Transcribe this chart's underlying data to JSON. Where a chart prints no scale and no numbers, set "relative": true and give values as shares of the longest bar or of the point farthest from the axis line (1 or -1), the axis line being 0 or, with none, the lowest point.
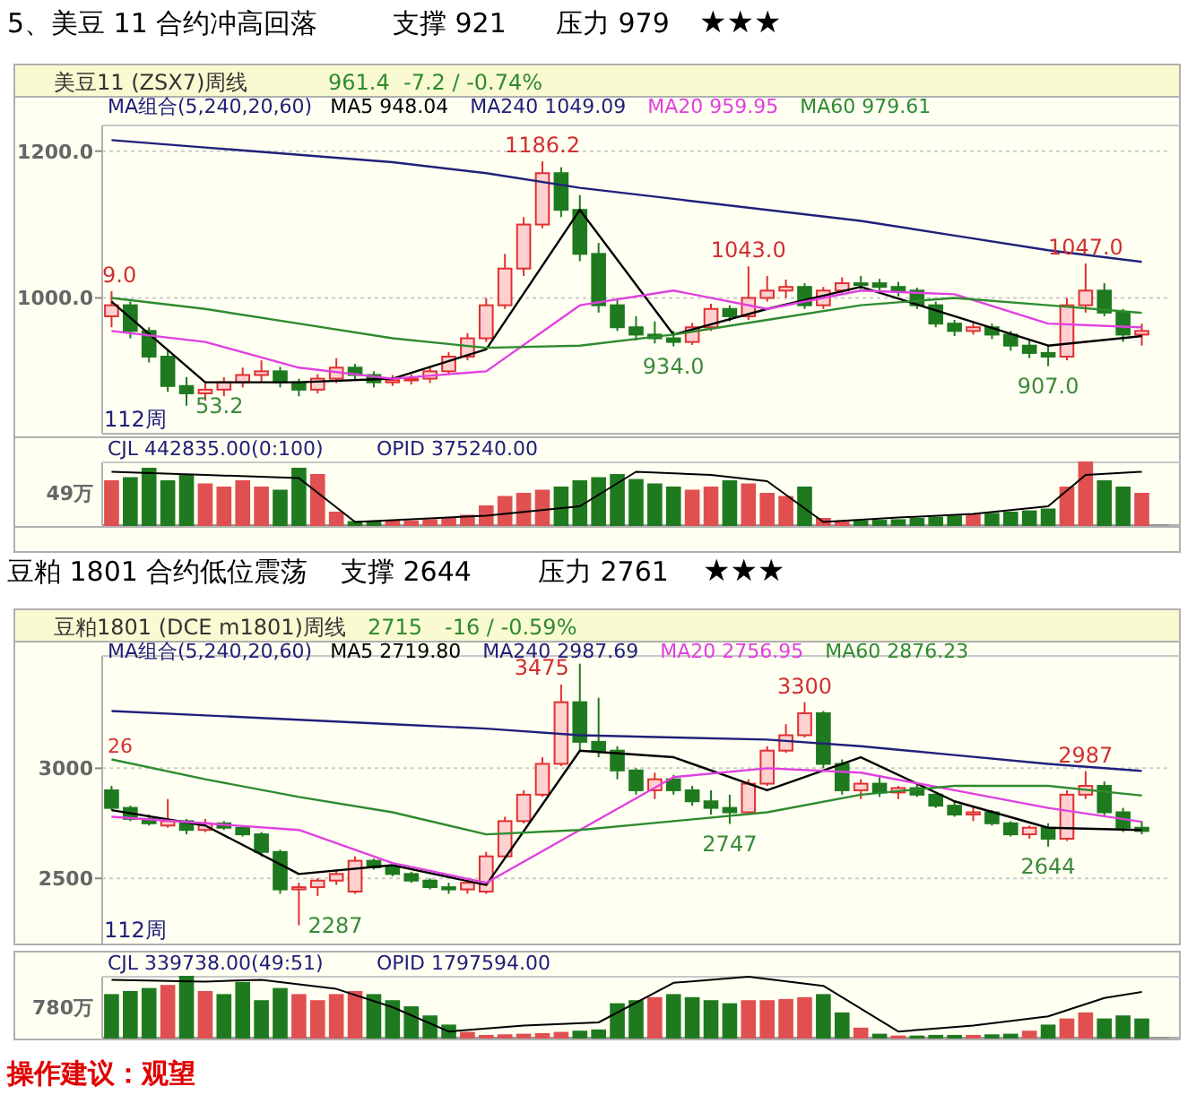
{
  "chart_data": [
    {
      "type": "candlestick",
      "title": "5、美豆 11 合约冲高回落",
      "subtitle": "美豆11 (ZSX7)周线",
      "annotations": [
        "支撑 921",
        "压力 979",
        "★★★",
        "961.4",
        "-7.2 / -0.74%",
        "MA组合(5,240,20,60)",
        "112周",
        "9.0",
        "53.2",
        "1186.2",
        "934.0",
        "1043.0",
        "1047.0",
        "907.0"
      ],
      "categories": [
        null,
        null,
        null,
        null,
        null,
        null,
        null,
        null,
        null,
        null,
        null,
        null,
        null,
        null,
        null,
        null,
        null,
        null,
        null,
        null,
        null,
        null,
        null,
        null,
        null,
        null,
        null,
        null,
        null,
        null,
        null,
        null,
        null,
        null,
        null,
        null,
        null,
        null,
        null,
        null,
        null,
        null,
        null,
        null,
        null,
        null,
        null,
        null,
        null,
        null,
        null,
        null,
        null,
        null,
        null,
        null
      ],
      "ohlc": [
        [
          975,
          1009.0,
          960,
          990
        ],
        [
          990,
          995,
          945,
          955
        ],
        [
          955,
          960,
          912,
          920
        ],
        [
          920,
          928,
          872,
          880
        ],
        [
          880,
          892,
          853.2,
          870
        ],
        [
          870,
          884,
          860,
          875
        ],
        [
          875,
          892,
          866,
          885
        ],
        [
          885,
          905,
          878,
          895
        ],
        [
          895,
          915,
          885,
          900
        ],
        [
          900,
          906,
          878,
          885
        ],
        [
          885,
          890,
          866,
          875
        ],
        [
          875,
          896,
          870,
          890
        ],
        [
          890,
          918,
          884,
          905
        ],
        [
          905,
          910,
          888,
          895
        ],
        [
          895,
          900,
          878,
          885
        ],
        [
          885,
          895,
          880,
          888
        ],
        [
          888,
          896,
          882,
          890
        ],
        [
          890,
          906,
          884,
          900
        ],
        [
          900,
          926,
          895,
          920
        ],
        [
          920,
          952,
          915,
          945
        ],
        [
          945,
          1000,
          940,
          990
        ],
        [
          990,
          1060,
          985,
          1040
        ],
        [
          1040,
          1110,
          1030,
          1100
        ],
        [
          1100,
          1186.2,
          1095,
          1170
        ],
        [
          1170,
          1178,
          1110,
          1120
        ],
        [
          1120,
          1140,
          1050,
          1060
        ],
        [
          1060,
          1075,
          980,
          990
        ],
        [
          990,
          1000,
          955,
          960
        ],
        [
          960,
          975,
          942,
          950
        ],
        [
          950,
          968,
          938,
          945
        ],
        [
          945,
          955,
          934.0,
          940
        ],
        [
          940,
          966,
          936,
          960
        ],
        [
          960,
          992,
          955,
          985
        ],
        [
          985,
          990,
          968,
          975
        ],
        [
          975,
          1043.0,
          970,
          1000
        ],
        [
          1000,
          1030,
          995,
          1010
        ],
        [
          1010,
          1025,
          1000,
          1015
        ],
        [
          1015,
          1020,
          985,
          990
        ],
        [
          990,
          1015,
          985,
          1010
        ],
        [
          1010,
          1028,
          1005,
          1020
        ],
        [
          1020,
          1030,
          1012,
          1020
        ],
        [
          1020,
          1026,
          1008,
          1015
        ],
        [
          1015,
          1022,
          1002,
          1010
        ],
        [
          1010,
          1014,
          985,
          990
        ],
        [
          990,
          995,
          960,
          965
        ],
        [
          965,
          970,
          948,
          955
        ],
        [
          955,
          968,
          950,
          960
        ],
        [
          960,
          965,
          944,
          950
        ],
        [
          950,
          955,
          928,
          935
        ],
        [
          935,
          942,
          918,
          925
        ],
        [
          925,
          935,
          907.0,
          920
        ],
        [
          920,
          1000,
          915,
          990
        ],
        [
          990,
          1047.0,
          980,
          1010
        ],
        [
          1010,
          1020,
          975,
          980
        ],
        [
          980,
          985,
          940,
          950
        ],
        [
          950,
          965,
          935,
          955
        ]
      ],
      "series": [
        {
          "type": "line",
          "name": "MA5 948.04",
          "color": "#000000",
          "values": [
            995,
            null,
            null,
            null,
            null,
            885,
            null,
            null,
            null,
            null,
            885,
            null,
            null,
            null,
            null,
            890,
            null,
            null,
            null,
            null,
            930,
            null,
            null,
            null,
            null,
            1120,
            null,
            null,
            null,
            null,
            950,
            null,
            null,
            null,
            null,
            985,
            null,
            null,
            null,
            null,
            1015,
            null,
            null,
            null,
            null,
            975,
            null,
            null,
            null,
            null,
            935,
            null,
            null,
            null,
            null,
            948.04
          ]
        },
        {
          "type": "line",
          "name": "MA240 1049.09",
          "color": "#20207a",
          "values": [
            1215,
            null,
            null,
            null,
            null,
            1205,
            null,
            null,
            null,
            null,
            1195,
            null,
            null,
            null,
            null,
            1185,
            null,
            null,
            null,
            null,
            1170,
            null,
            null,
            null,
            null,
            1150,
            null,
            null,
            null,
            null,
            1135,
            null,
            null,
            null,
            null,
            1120,
            null,
            null,
            null,
            null,
            1105,
            null,
            null,
            null,
            null,
            1085,
            null,
            null,
            null,
            null,
            1065,
            null,
            null,
            null,
            null,
            1049.09
          ]
        },
        {
          "type": "line",
          "name": "MA20 959.95",
          "color": "#e040e0",
          "values": [
            955,
            null,
            null,
            null,
            null,
            940,
            null,
            null,
            null,
            null,
            905,
            null,
            null,
            null,
            null,
            890,
            null,
            null,
            null,
            null,
            900,
            null,
            null,
            null,
            null,
            990,
            null,
            null,
            null,
            null,
            1010,
            null,
            null,
            null,
            null,
            985,
            null,
            null,
            null,
            null,
            1010,
            null,
            null,
            null,
            null,
            1005,
            null,
            null,
            null,
            null,
            965,
            null,
            null,
            null,
            null,
            959.95
          ]
        },
        {
          "type": "line",
          "name": "MA60 979.61",
          "color": "#2e8b2e",
          "values": [
            1000,
            null,
            null,
            null,
            null,
            985,
            null,
            null,
            null,
            null,
            965,
            null,
            null,
            null,
            null,
            945,
            null,
            null,
            null,
            null,
            932,
            null,
            null,
            null,
            null,
            935,
            null,
            null,
            null,
            null,
            950,
            null,
            null,
            null,
            null,
            970,
            null,
            null,
            null,
            null,
            990,
            null,
            null,
            null,
            null,
            1000,
            null,
            null,
            null,
            null,
            990,
            null,
            null,
            null,
            null,
            979.61
          ]
        }
      ],
      "ylim": [
        815,
        1235
      ],
      "yticks": [
        {
          "value": 1200,
          "label": "1200.0"
        },
        {
          "value": 1000,
          "label": "1000.0"
        }
      ],
      "grid": "y",
      "legend": "top"
    },
    {
      "type": "bar",
      "relative": true,
      "annotations": [
        "CJL  442835.00(0:100)",
        "OPID  375240.00",
        "49万"
      ],
      "categories": [
        null,
        null,
        null,
        null,
        null,
        null,
        null,
        null,
        null,
        null,
        null,
        null,
        null,
        null,
        null,
        null,
        null,
        null,
        null,
        null,
        null,
        null,
        null,
        null,
        null,
        null,
        null,
        null,
        null,
        null,
        null,
        null,
        null,
        null,
        null,
        null,
        null,
        null,
        null,
        null,
        null,
        null,
        null,
        null,
        null,
        null,
        null,
        null,
        null,
        null,
        null,
        null,
        null,
        null,
        null,
        null
      ],
      "series": [
        {
          "values": [
            0.7,
            0.75,
            0.9,
            0.7,
            0.8,
            0.65,
            0.6,
            0.7,
            0.6,
            0.55,
            0.9,
            0.8,
            0.2,
            0.05,
            0.05,
            0.06,
            0.06,
            0.08,
            0.1,
            0.15,
            0.3,
            0.45,
            0.5,
            0.55,
            0.6,
            0.7,
            0.75,
            0.8,
            0.72,
            0.65,
            0.6,
            0.55,
            0.6,
            0.7,
            0.65,
            0.5,
            0.45,
            0.6,
            0.1,
            0.05,
            0.06,
            0.07,
            0.08,
            0.1,
            0.12,
            0.14,
            0.16,
            0.18,
            0.2,
            0.22,
            0.25,
            0.6,
            1,
            0.7,
            0.6,
            0.5
          ],
          "colors": [
            "#e05050",
            "#1f7a1f",
            "#1f7a1f",
            "#1f7a1f",
            "#1f7a1f",
            "#e05050",
            "#e05050",
            "#e05050",
            "#e05050",
            "#1f7a1f",
            "#1f7a1f",
            "#e05050",
            "#e05050",
            "#1f7a1f",
            "#1f7a1f",
            "#e05050",
            "#e05050",
            "#e05050",
            "#e05050",
            "#e05050",
            "#e05050",
            "#e05050",
            "#e05050",
            "#e05050",
            "#1f7a1f",
            "#1f7a1f",
            "#1f7a1f",
            "#1f7a1f",
            "#1f7a1f",
            "#1f7a1f",
            "#1f7a1f",
            "#e05050",
            "#e05050",
            "#1f7a1f",
            "#e05050",
            "#e05050",
            "#e05050",
            "#1f7a1f",
            "#e05050",
            "#e05050",
            "#1f7a1f",
            "#1f7a1f",
            "#1f7a1f",
            "#1f7a1f",
            "#1f7a1f",
            "#1f7a1f",
            "#e05050",
            "#1f7a1f",
            "#1f7a1f",
            "#1f7a1f",
            "#1f7a1f",
            "#e05050",
            "#e05050",
            "#1f7a1f",
            "#1f7a1f",
            "#e05050"
          ]
        },
        {
          "type": "line",
          "color": "#000000",
          "values": [
            0.85,
            null,
            null,
            null,
            null,
            0.8,
            null,
            null,
            null,
            null,
            0.75,
            null,
            null,
            0.05,
            null,
            0.08,
            null,
            null,
            null,
            null,
            0.15,
            null,
            null,
            null,
            null,
            0.3,
            null,
            null,
            0.85,
            null,
            null,
            null,
            0.8,
            null,
            null,
            0.7,
            null,
            null,
            0.05,
            null,
            null,
            null,
            0.12,
            null,
            null,
            null,
            0.18,
            null,
            null,
            null,
            0.3,
            null,
            0.8,
            null,
            null,
            0.85
          ]
        }
      ]
    },
    {
      "type": "candlestick",
      "title": "豆粕 1801 合约低位震荡",
      "subtitle": "豆粕1801 (DCE m1801)周线",
      "annotations": [
        "支撑 2644",
        "压力 2761",
        "★★★",
        "2715",
        "-16 / -0.59%",
        "MA组合(5,240,20,60)",
        "112周",
        "26",
        "3475",
        "3300",
        "2747",
        "2644",
        "2987",
        "2287"
      ],
      "categories": [
        null,
        null,
        null,
        null,
        null,
        null,
        null,
        null,
        null,
        null,
        null,
        null,
        null,
        null,
        null,
        null,
        null,
        null,
        null,
        null,
        null,
        null,
        null,
        null,
        null,
        null,
        null,
        null,
        null,
        null,
        null,
        null,
        null,
        null,
        null,
        null,
        null,
        null,
        null,
        null,
        null,
        null,
        null,
        null,
        null,
        null,
        null,
        null,
        null,
        null,
        null,
        null,
        null,
        null,
        null,
        null
      ],
      "ohlc": [
        [
          2900,
          2920,
          2810,
          2820
        ],
        [
          2820,
          2830,
          2760,
          2770
        ],
        [
          2770,
          2790,
          2740,
          2750
        ],
        [
          2740,
          2860,
          2730,
          2760
        ],
        [
          2760,
          2770,
          2700,
          2720
        ],
        [
          2720,
          2770,
          2710,
          2750
        ],
        [
          2750,
          2760,
          2720,
          2730
        ],
        [
          2730,
          2740,
          2690,
          2700
        ],
        [
          2700,
          2710,
          2600,
          2620
        ],
        [
          2620,
          2630,
          2430,
          2450
        ],
        [
          2450,
          2480,
          2287,
          2460
        ],
        [
          2460,
          2500,
          2420,
          2490
        ],
        [
          2490,
          2540,
          2470,
          2520
        ],
        [
          2440,
          2600,
          2430,
          2580
        ],
        [
          2580,
          2590,
          2540,
          2550
        ],
        [
          2550,
          2560,
          2510,
          2520
        ],
        [
          2520,
          2530,
          2480,
          2490
        ],
        [
          2490,
          2500,
          2450,
          2460
        ],
        [
          2460,
          2480,
          2430,
          2450
        ],
        [
          2450,
          2500,
          2430,
          2480
        ],
        [
          2440,
          2620,
          2430,
          2600
        ],
        [
          2600,
          2780,
          2590,
          2760
        ],
        [
          2760,
          2900,
          2750,
          2880
        ],
        [
          2880,
          3050,
          2870,
          3020
        ],
        [
          3020,
          3380,
          3010,
          3300
        ],
        [
          3300,
          3475,
          3080,
          3120
        ],
        [
          3120,
          3320,
          3050,
          3080
        ],
        [
          3080,
          3100,
          2950,
          2990
        ],
        [
          2990,
          3000,
          2880,
          2900
        ],
        [
          2900,
          2980,
          2860,
          2950
        ],
        [
          2950,
          2970,
          2880,
          2900
        ],
        [
          2900,
          2920,
          2830,
          2850
        ],
        [
          2850,
          2900,
          2790,
          2820
        ],
        [
          2820,
          2880,
          2747,
          2800
        ],
        [
          2800,
          2950,
          2790,
          2930
        ],
        [
          2930,
          3100,
          2920,
          3080
        ],
        [
          3080,
          3200,
          3070,
          3150
        ],
        [
          3150,
          3300,
          3140,
          3250
        ],
        [
          3250,
          3260,
          3000,
          3020
        ],
        [
          3020,
          3040,
          2880,
          2900
        ],
        [
          2900,
          2950,
          2860,
          2930
        ],
        [
          2930,
          2960,
          2870,
          2890
        ],
        [
          2890,
          2920,
          2860,
          2910
        ],
        [
          2910,
          2930,
          2870,
          2880
        ],
        [
          2880,
          2890,
          2820,
          2830
        ],
        [
          2830,
          2850,
          2780,
          2790
        ],
        [
          2790,
          2830,
          2760,
          2800
        ],
        [
          2800,
          2810,
          2740,
          2750
        ],
        [
          2750,
          2760,
          2690,
          2700
        ],
        [
          2700,
          2740,
          2680,
          2730
        ],
        [
          2730,
          2750,
          2644,
          2680
        ],
        [
          2680,
          2900,
          2670,
          2880
        ],
        [
          2880,
          2987,
          2860,
          2920
        ],
        [
          2920,
          2940,
          2780,
          2800
        ],
        [
          2800,
          2820,
          2710,
          2730
        ],
        [
          2730,
          2760,
          2700,
          2715
        ]
      ],
      "series": [
        {
          "type": "line",
          "name": "MA5 2719.80",
          "color": "#000000",
          "values": [
            2810,
            null,
            null,
            null,
            null,
            2740,
            null,
            null,
            null,
            null,
            2520,
            null,
            null,
            null,
            null,
            2560,
            null,
            null,
            null,
            null,
            2470,
            null,
            null,
            null,
            null,
            3080,
            null,
            null,
            null,
            null,
            3050,
            null,
            null,
            null,
            null,
            2900,
            null,
            null,
            null,
            null,
            3050,
            null,
            null,
            null,
            null,
            2850,
            null,
            null,
            null,
            null,
            2730,
            null,
            null,
            null,
            null,
            2719.8
          ]
        },
        {
          "type": "line",
          "name": "MA240 2987.69",
          "color": "#20207a",
          "values": [
            3260,
            null,
            null,
            null,
            null,
            3240,
            null,
            null,
            null,
            null,
            3220,
            null,
            null,
            null,
            null,
            3200,
            null,
            null,
            null,
            null,
            3180,
            null,
            null,
            null,
            null,
            3150,
            null,
            null,
            null,
            null,
            3140,
            null,
            null,
            null,
            null,
            3130,
            null,
            null,
            null,
            null,
            3100,
            null,
            null,
            null,
            null,
            3060,
            null,
            null,
            null,
            null,
            3020,
            null,
            null,
            null,
            null,
            2987.69
          ]
        },
        {
          "type": "line",
          "name": "MA20 2756.95",
          "color": "#e040e0",
          "values": [
            2780,
            null,
            null,
            null,
            null,
            2750,
            null,
            null,
            null,
            null,
            2720,
            null,
            null,
            null,
            null,
            2570,
            null,
            null,
            null,
            null,
            2480,
            null,
            null,
            null,
            null,
            2720,
            null,
            null,
            null,
            null,
            2960,
            null,
            null,
            null,
            null,
            3000,
            null,
            null,
            null,
            null,
            2980,
            null,
            null,
            null,
            null,
            2900,
            null,
            null,
            null,
            null,
            2820,
            null,
            null,
            null,
            null,
            2756.95
          ]
        },
        {
          "type": "line",
          "name": "MA60 2876.23",
          "color": "#2e8b2e",
          "values": [
            3040,
            null,
            null,
            null,
            null,
            2950,
            null,
            null,
            null,
            null,
            2870,
            null,
            null,
            null,
            null,
            2800,
            null,
            null,
            null,
            null,
            2700,
            null,
            null,
            null,
            null,
            2720,
            null,
            null,
            null,
            null,
            2760,
            null,
            null,
            null,
            null,
            2800,
            null,
            null,
            null,
            null,
            2880,
            null,
            null,
            null,
            null,
            2920,
            null,
            null,
            null,
            null,
            2920,
            null,
            null,
            null,
            null,
            2876.23
          ]
        }
      ],
      "ylim": [
        2200,
        3510
      ],
      "yticks": [
        3000,
        2500
      ],
      "grid": "y",
      "legend": "top"
    },
    {
      "type": "bar",
      "relative": true,
      "annotations": [
        "CJL  339738.00(49:51)",
        "OPID  1797594.00",
        "780万",
        "操作建议：观望"
      ],
      "categories": [
        null,
        null,
        null,
        null,
        null,
        null,
        null,
        null,
        null,
        null,
        null,
        null,
        null,
        null,
        null,
        null,
        null,
        null,
        null,
        null,
        null,
        null,
        null,
        null,
        null,
        null,
        null,
        null,
        null,
        null,
        null,
        null,
        null,
        null,
        null,
        null,
        null,
        null,
        null,
        null,
        null,
        null,
        null,
        null,
        null,
        null,
        null,
        null,
        null,
        null,
        null,
        null,
        null,
        null,
        null,
        null
      ],
      "series": [
        {
          "values": [
            0.7,
            0.75,
            0.8,
            0.85,
            1,
            0.75,
            0.7,
            0.9,
            0.6,
            0.8,
            0.7,
            0.6,
            0.7,
            0.75,
            0.7,
            0.6,
            0.5,
            0.35,
            0.2,
            0.08,
            0.03,
            0.04,
            0.05,
            0.06,
            0.08,
            0.1,
            0.12,
            0.55,
            0.6,
            0.65,
            0.7,
            0.65,
            0.6,
            0.55,
            0.6,
            0.6,
            0.62,
            0.65,
            0.7,
            0.4,
            0.15,
            0.05,
            0.02,
            0.02,
            0.03,
            0.03,
            0.03,
            0.04,
            0.05,
            0.1,
            0.2,
            0.3,
            0.4,
            0.3,
            0.35,
            0.3
          ],
          "colors": [
            "#1f7a1f",
            "#1f7a1f",
            "#1f7a1f",
            "#e05050",
            "#1f7a1f",
            "#e05050",
            "#1f7a1f",
            "#1f7a1f",
            "#1f7a1f",
            "#1f7a1f",
            "#e05050",
            "#e05050",
            "#e05050",
            "#e05050",
            "#1f7a1f",
            "#1f7a1f",
            "#1f7a1f",
            "#1f7a1f",
            "#1f7a1f",
            "#e05050",
            "#e05050",
            "#e05050",
            "#e05050",
            "#e05050",
            "#e05050",
            "#1f7a1f",
            "#1f7a1f",
            "#1f7a1f",
            "#1f7a1f",
            "#e05050",
            "#1f7a1f",
            "#1f7a1f",
            "#1f7a1f",
            "#1f7a1f",
            "#e05050",
            "#e05050",
            "#e05050",
            "#e05050",
            "#1f7a1f",
            "#1f7a1f",
            "#e05050",
            "#1f7a1f",
            "#e05050",
            "#1f7a1f",
            "#1f7a1f",
            "#1f7a1f",
            "#e05050",
            "#1f7a1f",
            "#1f7a1f",
            "#e05050",
            "#1f7a1f",
            "#e05050",
            "#e05050",
            "#1f7a1f",
            "#1f7a1f",
            "#1f7a1f"
          ]
        },
        {
          "type": "line",
          "color": "#000000",
          "values": [
            0.95,
            null,
            null,
            null,
            null,
            0.92,
            null,
            null,
            0.95,
            null,
            null,
            null,
            0.8,
            null,
            null,
            0.5,
            null,
            null,
            0.1,
            null,
            null,
            null,
            0.2,
            null,
            null,
            null,
            0.25,
            null,
            null,
            null,
            0.9,
            null,
            null,
            null,
            1,
            null,
            null,
            null,
            0.85,
            null,
            null,
            null,
            0.1,
            null,
            null,
            null,
            0.2,
            null,
            null,
            null,
            0.35,
            null,
            null,
            0.65,
            null,
            0.75
          ]
        }
      ]
    }
  ]
}
